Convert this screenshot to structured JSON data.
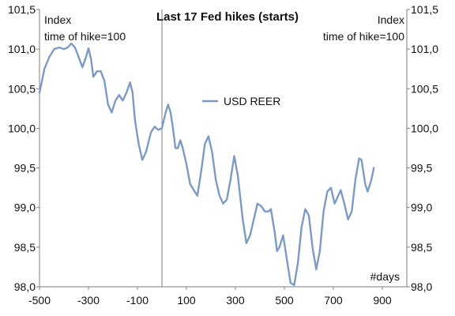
{
  "chart_data": {
    "type": "line",
    "title": "Last 17 Fed hikes (starts)",
    "left_axis_note": [
      "Index",
      "time of hike=100"
    ],
    "right_axis_note": [
      "Index",
      "time of hike=100"
    ],
    "x_unit_label": "#days",
    "xlim": [
      -500,
      1000
    ],
    "ylim": [
      98.0,
      101.5
    ],
    "x_ticks": [
      {
        "value": -500,
        "label": "-500"
      },
      {
        "value": -300,
        "label": "-300"
      },
      {
        "value": -100,
        "label": "-100"
      },
      {
        "value": 100,
        "label": "100"
      },
      {
        "value": 300,
        "label": "300"
      },
      {
        "value": 500,
        "label": "500"
      },
      {
        "value": 700,
        "label": "700"
      },
      {
        "value": 900,
        "label": "900"
      }
    ],
    "y_ticks": [
      {
        "value": 101.5,
        "label": "101,5"
      },
      {
        "value": 101.0,
        "label": "101,0"
      },
      {
        "value": 100.5,
        "label": "100,5"
      },
      {
        "value": 100.0,
        "label": "100,0"
      },
      {
        "value": 99.5,
        "label": "99,5"
      },
      {
        "value": 99.0,
        "label": "99,0"
      },
      {
        "value": 98.5,
        "label": "98,5"
      },
      {
        "value": 98.0,
        "label": "98,0"
      }
    ],
    "reference_line_x": 0,
    "grid": false,
    "legend_position": "center",
    "series": [
      {
        "name": "USD REER",
        "color": "#7B9BC4",
        "points": [
          [
            -500,
            100.45
          ],
          [
            -480,
            100.75
          ],
          [
            -460,
            100.9
          ],
          [
            -440,
            101.0
          ],
          [
            -420,
            101.02
          ],
          [
            -400,
            101.0
          ],
          [
            -385,
            101.02
          ],
          [
            -370,
            101.07
          ],
          [
            -355,
            101.02
          ],
          [
            -340,
            100.9
          ],
          [
            -325,
            100.77
          ],
          [
            -310,
            100.9
          ],
          [
            -300,
            101.01
          ],
          [
            -290,
            100.88
          ],
          [
            -280,
            100.65
          ],
          [
            -265,
            100.72
          ],
          [
            -250,
            100.72
          ],
          [
            -235,
            100.6
          ],
          [
            -220,
            100.3
          ],
          [
            -205,
            100.2
          ],
          [
            -190,
            100.35
          ],
          [
            -175,
            100.42
          ],
          [
            -160,
            100.35
          ],
          [
            -145,
            100.45
          ],
          [
            -130,
            100.58
          ],
          [
            -120,
            100.45
          ],
          [
            -110,
            100.1
          ],
          [
            -95,
            99.8
          ],
          [
            -80,
            99.6
          ],
          [
            -65,
            99.7
          ],
          [
            -45,
            99.95
          ],
          [
            -30,
            100.02
          ],
          [
            -15,
            99.98
          ],
          [
            0,
            100.0
          ],
          [
            15,
            100.2
          ],
          [
            25,
            100.3
          ],
          [
            35,
            100.2
          ],
          [
            45,
            100.0
          ],
          [
            55,
            99.75
          ],
          [
            65,
            99.75
          ],
          [
            75,
            99.85
          ],
          [
            85,
            99.75
          ],
          [
            100,
            99.55
          ],
          [
            115,
            99.3
          ],
          [
            130,
            99.22
          ],
          [
            145,
            99.15
          ],
          [
            160,
            99.45
          ],
          [
            175,
            99.8
          ],
          [
            190,
            99.9
          ],
          [
            205,
            99.7
          ],
          [
            220,
            99.35
          ],
          [
            235,
            99.15
          ],
          [
            250,
            99.05
          ],
          [
            265,
            99.1
          ],
          [
            280,
            99.35
          ],
          [
            295,
            99.65
          ],
          [
            310,
            99.4
          ],
          [
            330,
            98.85
          ],
          [
            345,
            98.55
          ],
          [
            360,
            98.65
          ],
          [
            375,
            98.85
          ],
          [
            390,
            99.05
          ],
          [
            405,
            99.02
          ],
          [
            420,
            98.95
          ],
          [
            435,
            98.95
          ],
          [
            445,
            98.98
          ],
          [
            460,
            98.7
          ],
          [
            470,
            98.45
          ],
          [
            480,
            98.5
          ],
          [
            495,
            98.65
          ],
          [
            510,
            98.35
          ],
          [
            525,
            98.05
          ],
          [
            540,
            98.02
          ],
          [
            555,
            98.3
          ],
          [
            570,
            98.75
          ],
          [
            585,
            98.98
          ],
          [
            600,
            98.9
          ],
          [
            615,
            98.5
          ],
          [
            630,
            98.22
          ],
          [
            645,
            98.45
          ],
          [
            660,
            98.95
          ],
          [
            675,
            99.2
          ],
          [
            690,
            99.25
          ],
          [
            705,
            99.05
          ],
          [
            720,
            99.15
          ],
          [
            730,
            99.22
          ],
          [
            745,
            99.05
          ],
          [
            760,
            98.85
          ],
          [
            775,
            98.95
          ],
          [
            790,
            99.35
          ],
          [
            805,
            99.62
          ],
          [
            815,
            99.6
          ],
          [
            830,
            99.3
          ],
          [
            840,
            99.2
          ],
          [
            855,
            99.35
          ],
          [
            865,
            99.5
          ]
        ]
      }
    ]
  }
}
